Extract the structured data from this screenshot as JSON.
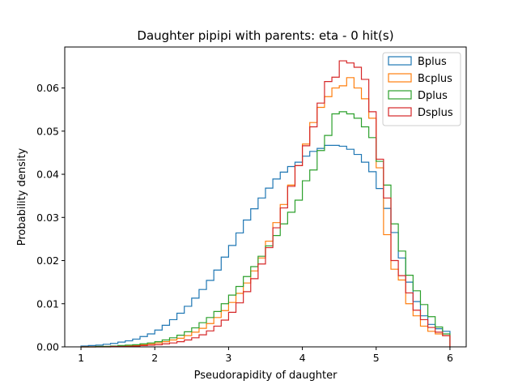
{
  "chart_data": {
    "type": "step-histogram",
    "title": "Daughter pipipi with parents: eta - 0 hit(s)",
    "xlabel": "Pseudorapidity of daughter",
    "ylabel": "Probability density",
    "xlim": [
      0.78,
      6.22
    ],
    "ylim": [
      0,
      0.0695
    ],
    "xticks": [
      1,
      2,
      3,
      4,
      5,
      6
    ],
    "xtick_labels": [
      "1",
      "2",
      "3",
      "4",
      "5",
      "6"
    ],
    "yticks": [
      0,
      0.01,
      0.02,
      0.03,
      0.04,
      0.05,
      0.06
    ],
    "ytick_labels": [
      "0.00",
      "0.01",
      "0.02",
      "0.03",
      "0.04",
      "0.05",
      "0.06"
    ],
    "grid": false,
    "legend_position": "top-right",
    "bin_edges_start": 1.0,
    "bin_width": 0.1,
    "series": [
      {
        "name": "Bplus",
        "color": "#1f77b4",
        "values": [
          0.0002,
          0.0003,
          0.0004,
          0.0006,
          0.0008,
          0.0011,
          0.0014,
          0.0018,
          0.0024,
          0.003,
          0.0039,
          0.005,
          0.0063,
          0.0078,
          0.0094,
          0.0113,
          0.0133,
          0.0154,
          0.0178,
          0.0208,
          0.0235,
          0.0264,
          0.0294,
          0.032,
          0.0345,
          0.0368,
          0.0389,
          0.0405,
          0.0418,
          0.0428,
          0.0442,
          0.0453,
          0.046,
          0.0467,
          0.0467,
          0.0465,
          0.0458,
          0.0446,
          0.0428,
          0.0406,
          0.0367,
          0.0321,
          0.0265,
          0.0206,
          0.015,
          0.0105,
          0.0072,
          0.0052,
          0.0042,
          0.0036
        ]
      },
      {
        "name": "Bcplus",
        "color": "#ff7f0e",
        "values": [
          0.0,
          0.0,
          0.0001,
          0.0001,
          0.0001,
          0.0002,
          0.0003,
          0.0004,
          0.0005,
          0.0007,
          0.0009,
          0.0012,
          0.0016,
          0.002,
          0.0026,
          0.0034,
          0.0043,
          0.0054,
          0.0068,
          0.0084,
          0.0103,
          0.0124,
          0.0148,
          0.0176,
          0.0206,
          0.0245,
          0.0288,
          0.033,
          0.0375,
          0.042,
          0.047,
          0.052,
          0.0555,
          0.058,
          0.06,
          0.0605,
          0.0624,
          0.06,
          0.0575,
          0.053,
          0.0415,
          0.026,
          0.018,
          0.0155,
          0.01,
          0.0072,
          0.0048,
          0.0036,
          0.003,
          0.0026
        ]
      },
      {
        "name": "Dplus",
        "color": "#2ca02c",
        "values": [
          0.0,
          0.0,
          0.0001,
          0.0001,
          0.0002,
          0.0003,
          0.0004,
          0.0005,
          0.0007,
          0.0009,
          0.0012,
          0.0016,
          0.0021,
          0.0027,
          0.0035,
          0.0044,
          0.0056,
          0.0068,
          0.0082,
          0.01,
          0.012,
          0.014,
          0.0163,
          0.0186,
          0.021,
          0.0234,
          0.0258,
          0.0285,
          0.0312,
          0.034,
          0.0385,
          0.041,
          0.0455,
          0.049,
          0.054,
          0.0545,
          0.054,
          0.053,
          0.051,
          0.0485,
          0.043,
          0.0375,
          0.0285,
          0.0222,
          0.0166,
          0.013,
          0.0098,
          0.007,
          0.0046,
          0.003
        ]
      },
      {
        "name": "Dsplus",
        "color": "#d62728",
        "values": [
          0.0,
          0.0,
          0.0,
          0.0,
          0.0001,
          0.0001,
          0.0001,
          0.0002,
          0.0003,
          0.0004,
          0.0005,
          0.0007,
          0.0009,
          0.0012,
          0.0016,
          0.0021,
          0.0028,
          0.0037,
          0.0048,
          0.0062,
          0.008,
          0.0102,
          0.0128,
          0.0158,
          0.0192,
          0.023,
          0.0276,
          0.0322,
          0.0372,
          0.042,
          0.0466,
          0.051,
          0.0565,
          0.0615,
          0.0625,
          0.0663,
          0.0658,
          0.0648,
          0.062,
          0.0545,
          0.0435,
          0.0345,
          0.02,
          0.0165,
          0.0125,
          0.0085,
          0.0063,
          0.0045,
          0.0034,
          0.0026
        ]
      }
    ]
  }
}
